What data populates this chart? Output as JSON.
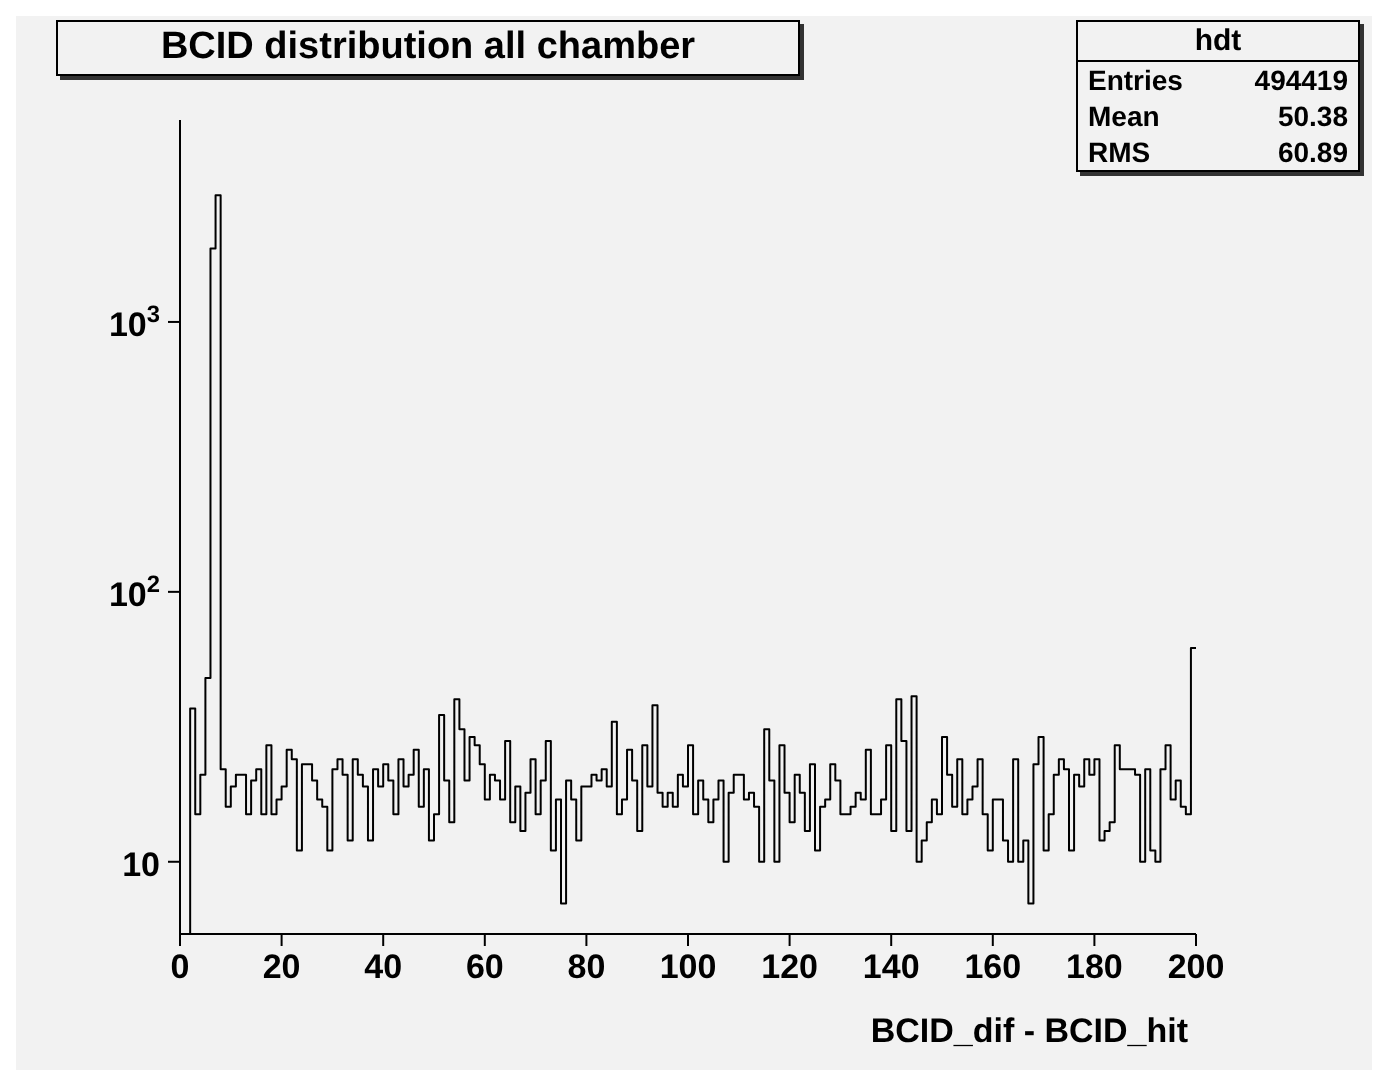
{
  "chart_data": {
    "type": "histogram",
    "title": "BCID distribution all chamber",
    "xlabel": "BCID_dif - BCID_hit",
    "annotations": [
      "hdt",
      "Entries 494419",
      "Mean 50.38",
      "RMS 60.89"
    ],
    "bins": [
      0,
      1,
      2,
      3,
      4,
      5,
      6,
      7,
      8,
      9,
      10,
      11,
      12,
      13,
      14,
      15,
      16,
      17,
      18,
      19,
      20,
      21,
      22,
      23,
      24,
      25,
      26,
      27,
      28,
      29,
      30,
      31,
      32,
      33,
      34,
      35,
      36,
      37,
      38,
      39,
      40,
      41,
      42,
      43,
      44,
      45,
      46,
      47,
      48,
      49,
      50,
      51,
      52,
      53,
      54,
      55,
      56,
      57,
      58,
      59,
      60,
      61,
      62,
      63,
      64,
      65,
      66,
      67,
      68,
      69,
      70,
      71,
      72,
      73,
      74,
      75,
      76,
      77,
      78,
      79,
      80,
      81,
      82,
      83,
      84,
      85,
      86,
      87,
      88,
      89,
      90,
      91,
      92,
      93,
      94,
      95,
      96,
      97,
      98,
      99,
      100,
      101,
      102,
      103,
      104,
      105,
      106,
      107,
      108,
      109,
      110,
      111,
      112,
      113,
      114,
      115,
      116,
      117,
      118,
      119,
      120,
      121,
      122,
      123,
      124,
      125,
      126,
      127,
      128,
      129,
      130,
      131,
      132,
      133,
      134,
      135,
      136,
      137,
      138,
      139,
      140,
      141,
      142,
      143,
      144,
      145,
      146,
      147,
      148,
      149,
      150,
      151,
      152,
      153,
      154,
      155,
      156,
      157,
      158,
      159,
      160,
      161,
      162,
      163,
      164,
      165,
      166,
      167,
      168,
      169,
      170,
      171,
      172,
      173,
      174,
      175,
      176,
      177,
      178,
      179,
      180,
      181,
      182,
      183,
      184,
      185,
      186,
      187,
      188,
      189,
      190,
      191,
      192,
      193,
      194,
      195,
      196,
      197,
      198,
      199,
      200
    ],
    "values": [
      null,
      null,
      37,
      15,
      21,
      48,
      1870,
      2950,
      22,
      16,
      19,
      21,
      21,
      15,
      20,
      22,
      15,
      27,
      15,
      17,
      19,
      26,
      24,
      11,
      23,
      23,
      20,
      17,
      16,
      11,
      22,
      24,
      21,
      12,
      24,
      21,
      19,
      12,
      22,
      19,
      23,
      20,
      15,
      24,
      19,
      21,
      26,
      16,
      22,
      12,
      15,
      35,
      20,
      14,
      40,
      31,
      20,
      29,
      27,
      23,
      17,
      21,
      20,
      17,
      28,
      14,
      19,
      13,
      18,
      24,
      15,
      20,
      28,
      11,
      17,
      7,
      20,
      17,
      12,
      19,
      19,
      21,
      20,
      22,
      19,
      33,
      15,
      17,
      26,
      20,
      13,
      27,
      19,
      38,
      18,
      16,
      18,
      16,
      21,
      19,
      27,
      15,
      20,
      17,
      14,
      17,
      20,
      10,
      18,
      21,
      21,
      17,
      18,
      16,
      10,
      31,
      20,
      10,
      27,
      18,
      14,
      21,
      18,
      13,
      23,
      11,
      16,
      17,
      23,
      20,
      15,
      15,
      16,
      18,
      17,
      26,
      15,
      15,
      17,
      27,
      13,
      40,
      28,
      13,
      41,
      10,
      12,
      14,
      17,
      15,
      29,
      21,
      16,
      24,
      15,
      17,
      19,
      24,
      15,
      11,
      17,
      17,
      12,
      10,
      24,
      10,
      12,
      7,
      23,
      29,
      11,
      15,
      21,
      24,
      22,
      11,
      21,
      19,
      24,
      21,
      24,
      12,
      13,
      14,
      27,
      22,
      22,
      22,
      21,
      10,
      22,
      11,
      10,
      22,
      27,
      17,
      20,
      16,
      15,
      62
    ],
    "color": "#000000",
    "xlim": [
      0,
      200
    ],
    "xticks": [
      0,
      20,
      40,
      60,
      80,
      100,
      120,
      140,
      160,
      180,
      200
    ],
    "ylim": [
      5.4,
      5600
    ],
    "yticks": [
      {
        "value": 10,
        "label": "10"
      },
      {
        "value": 100,
        "label": "10$^{2}$"
      },
      {
        "value": 1000,
        "label": "10$^{3}$"
      }
    ],
    "log": "y"
  }
}
